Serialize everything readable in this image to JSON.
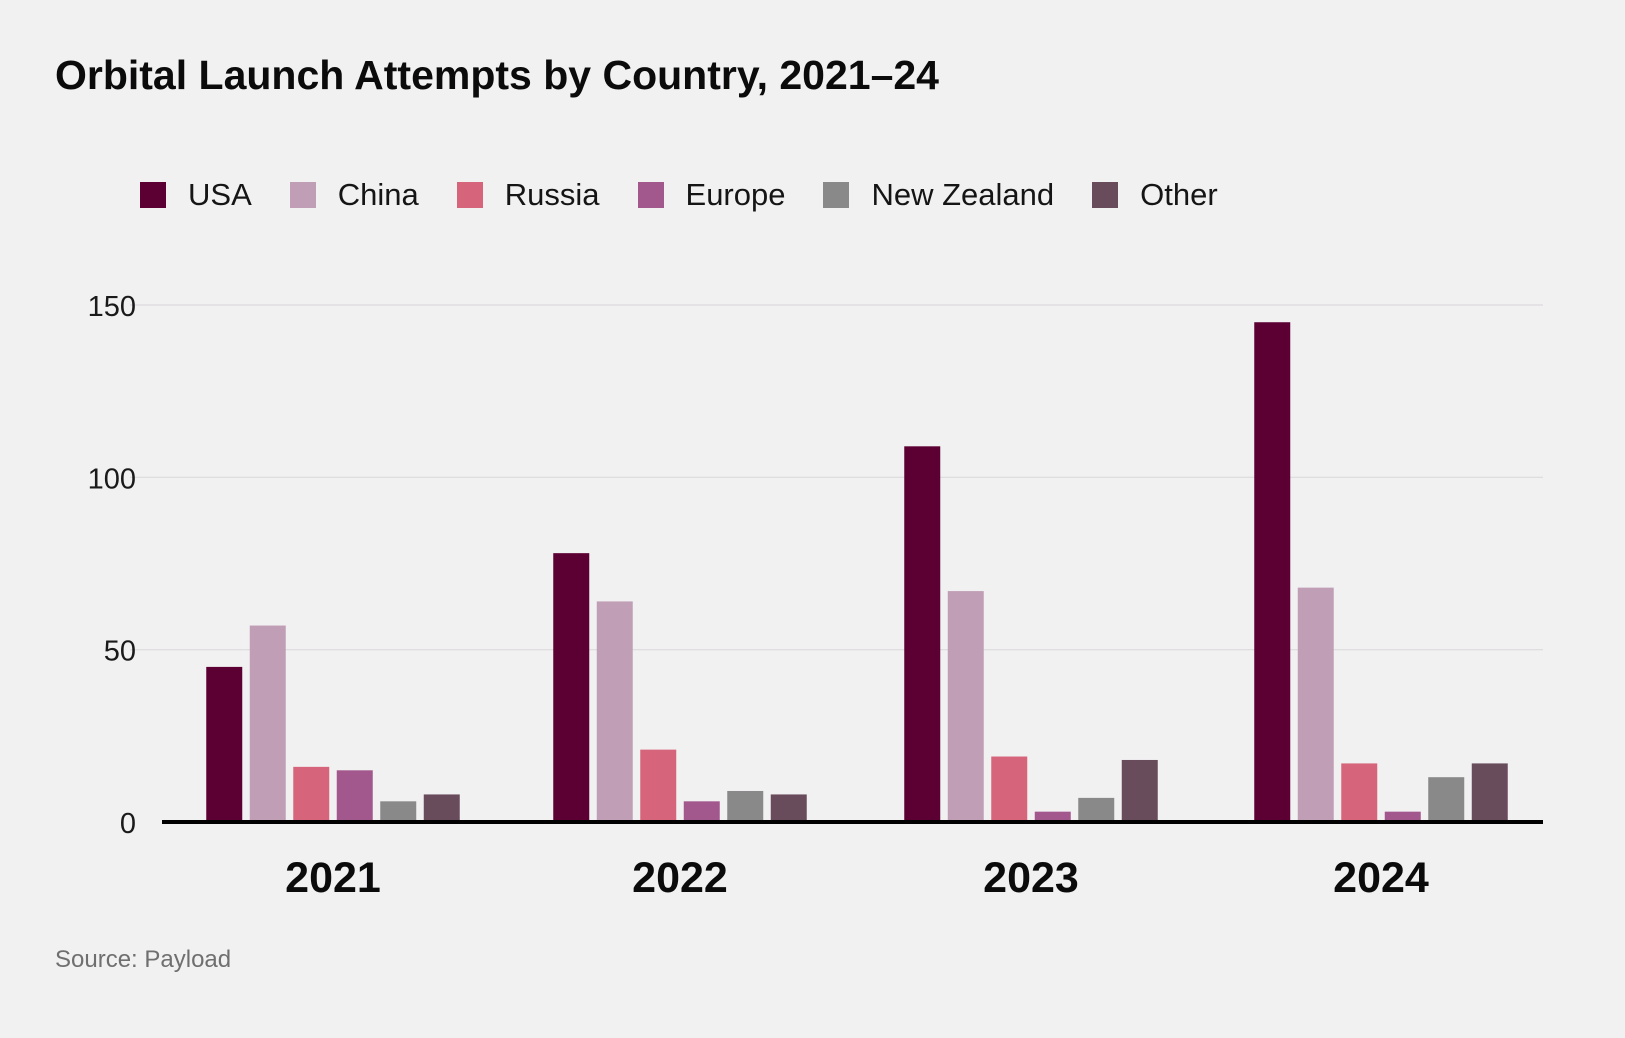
{
  "chart_data": {
    "type": "bar",
    "title": "Orbital Launch Attempts by Country, 2021–24",
    "categories": [
      "2021",
      "2022",
      "2023",
      "2024"
    ],
    "series": [
      {
        "name": "USA",
        "color": "#5c0033",
        "values": [
          45,
          78,
          109,
          145
        ]
      },
      {
        "name": "China",
        "color": "#c09fb6",
        "values": [
          57,
          64,
          67,
          68
        ]
      },
      {
        "name": "Russia",
        "color": "#d6657b",
        "values": [
          16,
          21,
          19,
          17
        ]
      },
      {
        "name": "Europe",
        "color": "#a2578d",
        "values": [
          15,
          6,
          3,
          3
        ]
      },
      {
        "name": "New Zealand",
        "color": "#898989",
        "values": [
          6,
          9,
          7,
          13
        ]
      },
      {
        "name": "Other",
        "color": "#694c5b",
        "values": [
          8,
          8,
          18,
          17
        ]
      }
    ],
    "ylim": [
      0,
      150
    ],
    "yticks": [
      0,
      50,
      100,
      150
    ],
    "xlabel": "",
    "ylabel": "",
    "grid": true,
    "legend": "top"
  },
  "source": "Source: Payload"
}
